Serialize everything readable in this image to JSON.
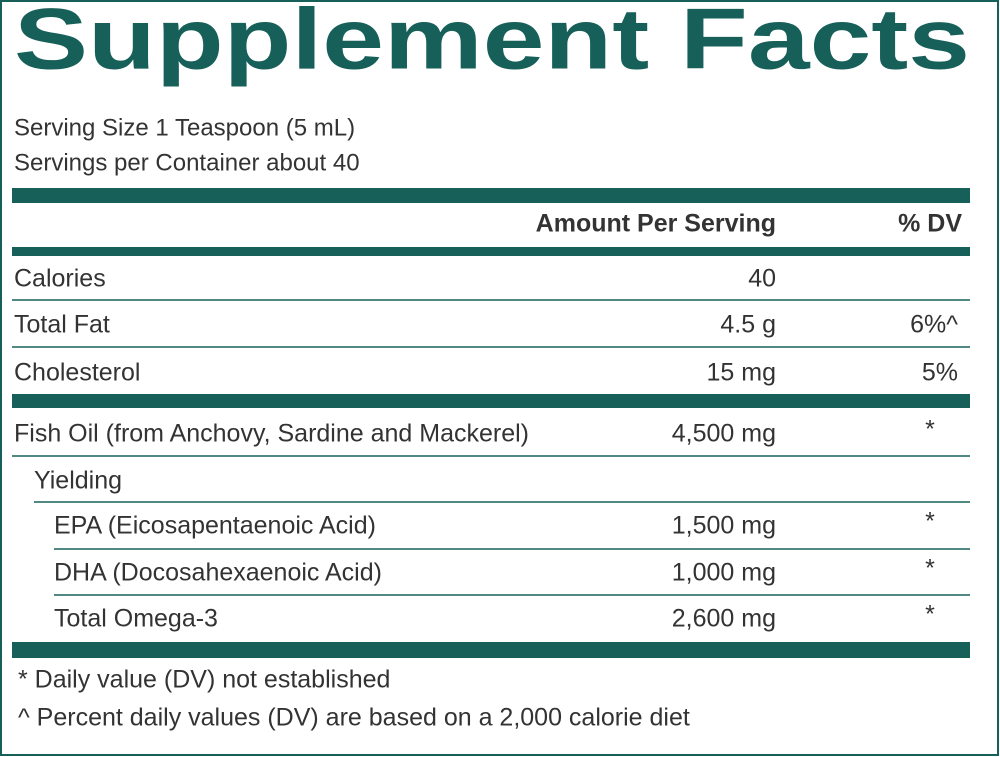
{
  "title": "Supplement Facts",
  "serving_size": "Serving Size 1 Teaspoon (5 mL)",
  "servings_per_container": "Servings per Container about 40",
  "table": {
    "header": [
      "Amount Per Serving",
      "% DV"
    ],
    "rows": [
      {
        "name": "Calories",
        "amount": "40"
      },
      {
        "name": "Total Fat",
        "amount": "4.5 g",
        "dv": "6%^"
      },
      {
        "name": "Cholesterol",
        "amount": "15 mg",
        "dv": "5%"
      },
      {
        "name": "Fish Oil (from Anchovy, Sardine and Mackerel)",
        "amount": "4,500 mg",
        "dv": "*"
      },
      {
        "name": "Yielding"
      },
      {
        "name": "EPA (Eicosapentaenoic Acid)",
        "amount": "1,500 mg",
        "dv": "*"
      },
      {
        "name": "DHA (Docosahexaenoic Acid)",
        "amount": "1,000 mg",
        "dv": "*"
      },
      {
        "name": "Total Omega-3",
        "amount": "2,600 mg",
        "dv": "*"
      }
    ]
  },
  "footnotes": [
    "* Daily value (DV) not established",
    "^ Percent daily values (DV) are based on a 2,000 calorie diet"
  ]
}
